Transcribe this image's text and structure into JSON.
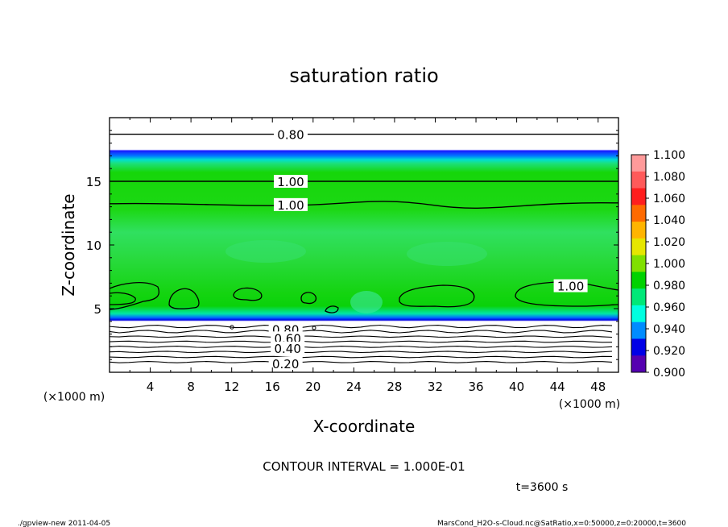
{
  "chart_data": {
    "type": "heatmap",
    "title": "saturation ratio",
    "xlabel": "X-coordinate",
    "ylabel": "Z-coordinate",
    "x_unit": "(×1000 m)",
    "y_unit": "(×1000 m)",
    "xlim": [
      0,
      50
    ],
    "ylim": [
      0,
      20
    ],
    "x_ticks": [
      4,
      8,
      12,
      16,
      20,
      24,
      28,
      32,
      36,
      40,
      44,
      48
    ],
    "y_ticks": [
      5,
      10,
      15
    ],
    "colorbar": {
      "levels": [
        1.1,
        1.08,
        1.06,
        1.04,
        1.02,
        1.0,
        0.98,
        0.96,
        0.94,
        0.92,
        0.9
      ],
      "labels": [
        "1.100",
        "1.080",
        "1.060",
        "1.040",
        "1.020",
        "1.000",
        "0.980",
        "0.960",
        "0.940",
        "0.920",
        "0.900"
      ],
      "colors": [
        "#ff9a9a",
        "#ff5a5a",
        "#ff1e1e",
        "#ff6a00",
        "#ffb400",
        "#e6e600",
        "#80e000",
        "#00d200",
        "#00e878",
        "#00ffe0",
        "#008cff",
        "#0000e6",
        "#5500b0"
      ]
    },
    "contour_labels": [
      "0.80",
      "1.00",
      "1.00",
      "1.00",
      "0.80",
      "0.60",
      "0.40",
      "0.20"
    ],
    "contour_interval_text": "CONTOUR INTERVAL = 1.000E-01",
    "time_text": "t=3600 s",
    "field": {
      "upper_clear_above_z": 17.3,
      "upper_blue_band_z": [
        16.8,
        17.5
      ],
      "cloud_layer_z": [
        4.2,
        16.8
      ],
      "lower_blue_band_z": [
        4.0,
        4.6
      ],
      "lower_clear_below_z": 4.0,
      "contour_levels_upper_z": [
        {
          "level": 0.8,
          "z": 18.7
        },
        {
          "level": 1.0,
          "z": 15.0
        },
        {
          "level": 1.0,
          "z": 13.3
        }
      ],
      "contour_levels_lower_z": [
        3.6,
        3.2,
        2.8,
        2.4,
        2.0,
        1.6,
        1.2,
        0.8
      ]
    }
  },
  "footer": {
    "left": "./gpview-new   2011-04-05",
    "right": "MarsCond_H2O-s-Cloud.nc@SatRatio,x=0:50000,z=0:20000,t=3600"
  }
}
